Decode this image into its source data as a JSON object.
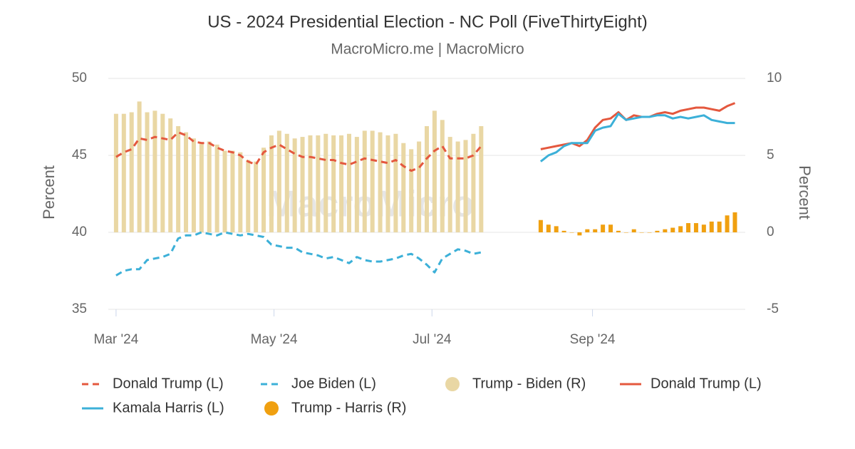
{
  "chart_data": {
    "type": "line",
    "title": "US - 2024 Presidential Election - NC Poll (FiveThirtyEight)",
    "subtitle": "MacroMicro.me | MacroMicro",
    "watermark": "MacroMicro",
    "y_label": "Percent",
    "y2_label": "Percent",
    "x": [
      "2024-03-01",
      "2024-03-04",
      "2024-03-07",
      "2024-03-10",
      "2024-03-13",
      "2024-03-16",
      "2024-03-19",
      "2024-03-22",
      "2024-03-25",
      "2024-03-28",
      "2024-03-31",
      "2024-04-03",
      "2024-04-06",
      "2024-04-09",
      "2024-04-12",
      "2024-04-15",
      "2024-04-18",
      "2024-04-21",
      "2024-04-24",
      "2024-04-27",
      "2024-04-30",
      "2024-05-03",
      "2024-05-06",
      "2024-05-09",
      "2024-05-12",
      "2024-05-15",
      "2024-05-18",
      "2024-05-21",
      "2024-05-24",
      "2024-05-27",
      "2024-05-30",
      "2024-06-02",
      "2024-06-05",
      "2024-06-08",
      "2024-06-11",
      "2024-06-14",
      "2024-06-17",
      "2024-06-20",
      "2024-06-23",
      "2024-06-26",
      "2024-06-29",
      "2024-07-02",
      "2024-07-05",
      "2024-07-08",
      "2024-07-11",
      "2024-07-14",
      "2024-07-17",
      "2024-07-20",
      "2024-08-12",
      "2024-08-15",
      "2024-08-18",
      "2024-08-21",
      "2024-08-24",
      "2024-08-27",
      "2024-08-30",
      "2024-09-02",
      "2024-09-05",
      "2024-09-08",
      "2024-09-11",
      "2024-09-14",
      "2024-09-17",
      "2024-09-20",
      "2024-09-23",
      "2024-09-26",
      "2024-09-29",
      "2024-10-02",
      "2024-10-05",
      "2024-10-08",
      "2024-10-11",
      "2024-10-14",
      "2024-10-17",
      "2024-10-20",
      "2024-10-23",
      "2024-10-26"
    ],
    "xlim": [
      "2024-02-27",
      "2024-10-30"
    ],
    "xticks": [
      {
        "value": "2024-03-01",
        "label": "Mar '24"
      },
      {
        "value": "2024-05-01",
        "label": "May '24"
      },
      {
        "value": "2024-07-01",
        "label": "Jul '24"
      },
      {
        "value": "2024-09-01",
        "label": "Sep '24"
      }
    ],
    "ylim": [
      35,
      50
    ],
    "yticks": [
      35,
      40,
      45,
      50
    ],
    "y2lim": [
      -5,
      10
    ],
    "y2ticks": [
      -5,
      0,
      5,
      10
    ],
    "grid": true,
    "series": [
      {
        "name": "Donald Trump (L)",
        "type": "line",
        "dash": true,
        "color": "#e4583e",
        "values": [
          44.9,
          45.2,
          45.4,
          46.1,
          46.0,
          46.2,
          46.1,
          46.0,
          46.5,
          46.3,
          45.9,
          45.8,
          45.8,
          45.5,
          45.3,
          45.2,
          45.0,
          44.6,
          44.4,
          45.2,
          45.5,
          45.7,
          45.4,
          45.1,
          44.9,
          44.9,
          44.8,
          44.7,
          44.7,
          44.5,
          44.4,
          44.6,
          44.8,
          44.7,
          44.6,
          44.5,
          44.7,
          44.3,
          44.0,
          44.2,
          44.8,
          45.3,
          45.6,
          44.8,
          44.8,
          44.8,
          45.0,
          45.6,
          null,
          null,
          null,
          null,
          null,
          null,
          null,
          null,
          null,
          null,
          null,
          null,
          null,
          null,
          null,
          null,
          null,
          null,
          null,
          null,
          null,
          null,
          null,
          null,
          null,
          null
        ]
      },
      {
        "name": "Joe Biden (L)",
        "type": "line",
        "dash": true,
        "color": "#3cb0d8",
        "values": [
          37.2,
          37.5,
          37.6,
          37.6,
          38.2,
          38.3,
          38.4,
          38.6,
          39.6,
          39.8,
          39.8,
          40.0,
          39.9,
          39.8,
          40.0,
          39.9,
          39.8,
          39.9,
          39.8,
          39.7,
          39.2,
          39.1,
          39.0,
          39.0,
          38.7,
          38.6,
          38.5,
          38.3,
          38.4,
          38.2,
          38.0,
          38.4,
          38.2,
          38.1,
          38.1,
          38.2,
          38.3,
          38.5,
          38.6,
          38.3,
          37.9,
          37.4,
          38.3,
          38.6,
          38.9,
          38.8,
          38.6,
          38.7,
          null,
          null,
          null,
          null,
          null,
          null,
          null,
          null,
          null,
          null,
          null,
          null,
          null,
          null,
          null,
          null,
          null,
          null,
          null,
          null,
          null,
          null,
          null,
          null,
          null,
          null
        ]
      },
      {
        "name": "Trump - Biden (R)",
        "type": "bar",
        "axis": "y2",
        "color": "#e9d7a4",
        "values": [
          7.7,
          7.7,
          7.8,
          8.5,
          7.8,
          7.9,
          7.7,
          7.4,
          6.9,
          6.5,
          6.1,
          5.8,
          5.9,
          5.7,
          5.3,
          5.3,
          5.2,
          4.7,
          4.6,
          5.5,
          6.3,
          6.6,
          6.4,
          6.1,
          6.2,
          6.3,
          6.3,
          6.4,
          6.3,
          6.3,
          6.4,
          6.2,
          6.6,
          6.6,
          6.5,
          6.3,
          6.4,
          5.8,
          5.4,
          5.9,
          6.9,
          7.9,
          7.3,
          6.2,
          5.9,
          6.0,
          6.4,
          6.9,
          null,
          null,
          null,
          null,
          null,
          null,
          null,
          null,
          null,
          null,
          null,
          null,
          null,
          null,
          null,
          null,
          null,
          null,
          null,
          null,
          null,
          null,
          null,
          null,
          null,
          null
        ]
      },
      {
        "name": "Donald Trump (L)",
        "type": "line",
        "dash": false,
        "color": "#e4583e",
        "values": [
          null,
          null,
          null,
          null,
          null,
          null,
          null,
          null,
          null,
          null,
          null,
          null,
          null,
          null,
          null,
          null,
          null,
          null,
          null,
          null,
          null,
          null,
          null,
          null,
          null,
          null,
          null,
          null,
          null,
          null,
          null,
          null,
          null,
          null,
          null,
          null,
          null,
          null,
          null,
          null,
          null,
          null,
          null,
          null,
          null,
          null,
          null,
          null,
          45.4,
          45.5,
          45.6,
          45.7,
          45.8,
          45.6,
          46.0,
          46.8,
          47.3,
          47.4,
          47.8,
          47.3,
          47.6,
          47.5,
          47.5,
          47.7,
          47.8,
          47.7,
          47.9,
          48.0,
          48.1,
          48.1,
          48.0,
          47.9,
          48.2,
          48.4
        ]
      },
      {
        "name": "Kamala Harris (L)",
        "type": "line",
        "dash": false,
        "color": "#3cb0d8",
        "values": [
          null,
          null,
          null,
          null,
          null,
          null,
          null,
          null,
          null,
          null,
          null,
          null,
          null,
          null,
          null,
          null,
          null,
          null,
          null,
          null,
          null,
          null,
          null,
          null,
          null,
          null,
          null,
          null,
          null,
          null,
          null,
          null,
          null,
          null,
          null,
          null,
          null,
          null,
          null,
          null,
          null,
          null,
          null,
          null,
          null,
          null,
          null,
          null,
          44.6,
          45.0,
          45.2,
          45.6,
          45.8,
          45.8,
          45.8,
          46.6,
          46.8,
          46.9,
          47.7,
          47.3,
          47.4,
          47.5,
          47.5,
          47.6,
          47.6,
          47.4,
          47.5,
          47.4,
          47.5,
          47.6,
          47.3,
          47.2,
          47.1,
          47.1
        ]
      },
      {
        "name": "Trump - Harris (R)",
        "type": "bar",
        "axis": "y2",
        "color": "#f0a010",
        "values": [
          null,
          null,
          null,
          null,
          null,
          null,
          null,
          null,
          null,
          null,
          null,
          null,
          null,
          null,
          null,
          null,
          null,
          null,
          null,
          null,
          null,
          null,
          null,
          null,
          null,
          null,
          null,
          null,
          null,
          null,
          null,
          null,
          null,
          null,
          null,
          null,
          null,
          null,
          null,
          null,
          null,
          null,
          null,
          null,
          null,
          null,
          null,
          null,
          0.8,
          0.5,
          0.4,
          0.1,
          0.0,
          -0.2,
          0.2,
          0.2,
          0.5,
          0.5,
          0.1,
          0.0,
          0.2,
          0.0,
          0.0,
          0.1,
          0.2,
          0.3,
          0.4,
          0.6,
          0.6,
          0.5,
          0.7,
          0.7,
          1.1,
          1.3
        ]
      }
    ]
  }
}
